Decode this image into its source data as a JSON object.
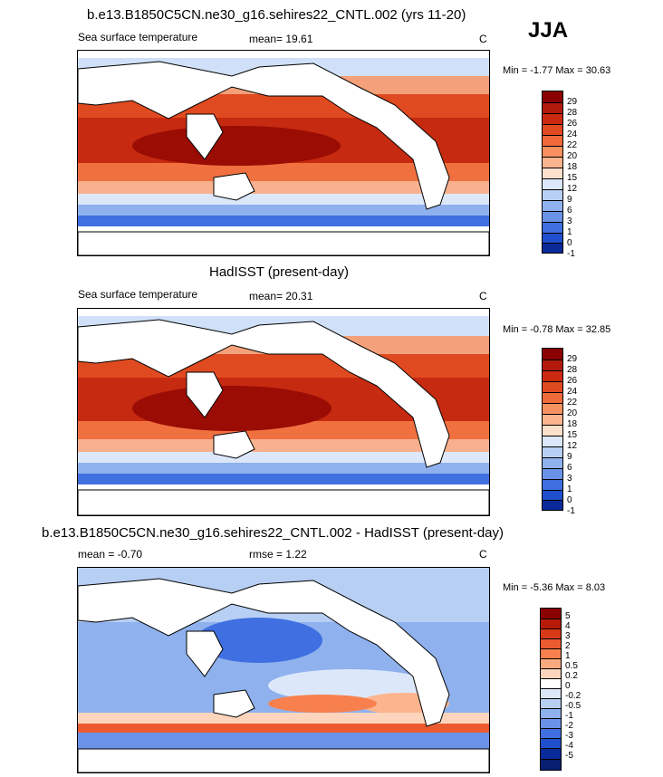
{
  "season": "JJA",
  "panels": [
    {
      "title": "b.e13.B1850C5CN.ne30_g16.sehires22_CNTL.002 (yrs 11-20)",
      "variable": "Sea surface temperature",
      "stat1": "mean=  19.61",
      "stat2": "",
      "units": "C",
      "minmax": "Min =  -1.77 Max =  30.63",
      "levels": [
        "29",
        "28",
        "26",
        "24",
        "22",
        "20",
        "18",
        "15",
        "12",
        "9",
        "6",
        "3",
        "1",
        "0",
        "-1"
      ],
      "colors": [
        "#8b0000",
        "#b11a0a",
        "#cc2a10",
        "#e04a20",
        "#f06a3a",
        "#f89060",
        "#fcb48e",
        "#fde0cc",
        "#dce8fa",
        "#b8cff4",
        "#8fb2ee",
        "#6a93e8",
        "#3f6fe0",
        "#1f4fcc",
        "#0a2a9a"
      ]
    },
    {
      "title": "HadISST (present-day)",
      "variable": "Sea surface temperature",
      "stat1": "mean=  20.31",
      "stat2": "",
      "units": "C",
      "minmax": "Min =  -0.78 Max =  32.85",
      "levels": [
        "29",
        "28",
        "26",
        "24",
        "22",
        "20",
        "18",
        "15",
        "12",
        "9",
        "6",
        "3",
        "1",
        "0",
        "-1"
      ],
      "colors": [
        "#8b0000",
        "#b11a0a",
        "#cc2a10",
        "#e04a20",
        "#f06a3a",
        "#f89060",
        "#fcb48e",
        "#fde0cc",
        "#dce8fa",
        "#b8cff4",
        "#8fb2ee",
        "#6a93e8",
        "#3f6fe0",
        "#1f4fcc",
        "#0a2a9a"
      ]
    },
    {
      "title": "b.e13.B1850C5CN.ne30_g16.sehires22_CNTL.002 - HadISST (present-day)",
      "variable": "",
      "stat1": "mean =  -0.70",
      "stat2": "rmse =   1.22",
      "units": "C",
      "minmax": "Min =  -5.36 Max =   8.03",
      "levels": [
        "5",
        "4",
        "3",
        "2",
        "1",
        "0.5",
        "0.2",
        "0",
        "-0.2",
        "-0.5",
        "-1",
        "-2",
        "-3",
        "-4",
        "-5"
      ],
      "colors": [
        "#8b0000",
        "#b81a08",
        "#d83a18",
        "#ec5a30",
        "#f8804e",
        "#fcaa80",
        "#fdd4bc",
        "#ffffff",
        "#dce8fa",
        "#b8cff4",
        "#8fb2ee",
        "#6a93e8",
        "#3f6fe0",
        "#1f4fcc",
        "#0a2a9a",
        "#081e70"
      ]
    }
  ]
}
